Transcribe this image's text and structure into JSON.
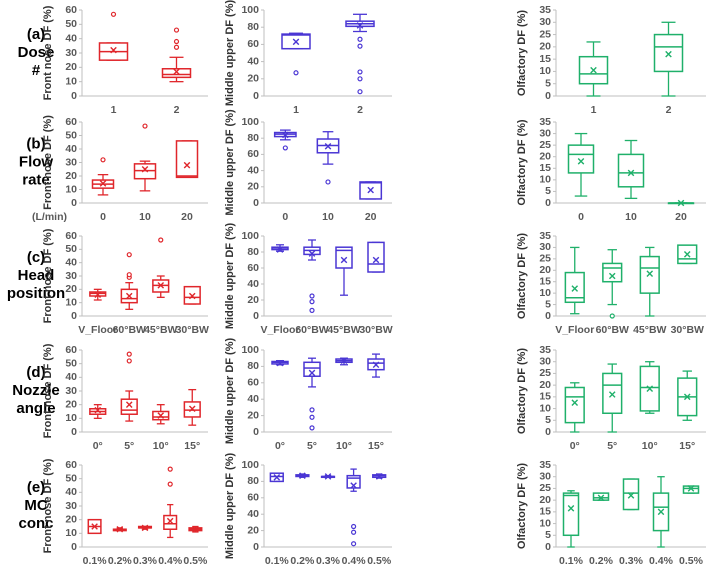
{
  "row_labels": [
    [
      "(a)",
      "Dose",
      "#"
    ],
    [
      "(b)",
      "Flow",
      "rate"
    ],
    [
      "(c)",
      "Head",
      "position"
    ],
    [
      "(d)",
      "Nozzle",
      "angle"
    ],
    [
      "(e)",
      "MC",
      "conc"
    ]
  ],
  "chart_data": [
    {
      "type": "box",
      "ylabel": "Front nose DF (%)",
      "color": "#e0262b",
      "ylim": [
        0,
        60
      ],
      "yticks": [
        0,
        10,
        20,
        30,
        40,
        50,
        60
      ],
      "categories": [
        "1",
        "2"
      ],
      "boxes": [
        {
          "min": 25,
          "q1": 25,
          "median": 31,
          "q3": 37,
          "max": 37,
          "mean": 32,
          "outliers": [
            57
          ]
        },
        {
          "min": 10,
          "q1": 13,
          "median": 15,
          "q3": 19,
          "max": 27,
          "mean": 17,
          "outliers": [
            34,
            38,
            46
          ]
        }
      ]
    },
    {
      "type": "box",
      "ylabel": "Middle upper DF (%)",
      "color": "#4a36d4",
      "ylim": [
        0,
        100
      ],
      "yticks": [
        0,
        20,
        40,
        60,
        80,
        100
      ],
      "categories": [
        "1",
        "2"
      ],
      "boxes": [
        {
          "min": 55,
          "q1": 55,
          "median": 71,
          "q3": 72,
          "max": 73,
          "mean": 63,
          "outliers": [
            27
          ]
        },
        {
          "min": 75,
          "q1": 81,
          "median": 84,
          "q3": 87,
          "max": 95,
          "mean": 82,
          "outliers": [
            66,
            58,
            28,
            20,
            5
          ]
        }
      ]
    },
    {
      "type": "box",
      "ylabel": "Olfactory DF (%)",
      "color": "#1fb06a",
      "ylim": [
        0,
        35
      ],
      "yticks": [
        0,
        5,
        10,
        15,
        20,
        25,
        30,
        35
      ],
      "categories": [
        "1",
        "2"
      ],
      "boxes": [
        {
          "min": 0,
          "q1": 5,
          "median": 9,
          "q3": 16,
          "max": 22,
          "mean": 10.5,
          "outliers": []
        },
        {
          "min": 0,
          "q1": 10,
          "median": 20,
          "q3": 25,
          "max": 30,
          "mean": 17,
          "outliers": []
        }
      ]
    },
    {
      "type": "box",
      "ylabel": "Front nose DF (%)",
      "xlabel": "(L/min)",
      "color": "#e0262b",
      "ylim": [
        0,
        60
      ],
      "yticks": [
        0,
        10,
        20,
        30,
        40,
        50,
        60
      ],
      "categories": [
        "0",
        "10",
        "20"
      ],
      "boxes": [
        {
          "min": 6,
          "q1": 11,
          "median": 14,
          "q3": 17,
          "max": 21,
          "mean": 14.5,
          "outliers": [
            32
          ]
        },
        {
          "min": 9,
          "q1": 18,
          "median": 24,
          "q3": 29,
          "max": 31,
          "mean": 25,
          "outliers": [
            57
          ]
        },
        {
          "min": 19,
          "q1": 19,
          "median": 20,
          "q3": 46,
          "max": 46,
          "mean": 28,
          "outliers": []
        }
      ]
    },
    {
      "type": "box",
      "ylabel": "Middle upper DF (%)",
      "color": "#4a36d4",
      "ylim": [
        0,
        100
      ],
      "yticks": [
        0,
        20,
        40,
        60,
        80,
        100
      ],
      "categories": [
        "0",
        "10",
        "20"
      ],
      "boxes": [
        {
          "min": 78,
          "q1": 82,
          "median": 85,
          "q3": 87,
          "max": 90,
          "mean": 84,
          "outliers": [
            68
          ]
        },
        {
          "min": 48,
          "q1": 62,
          "median": 71,
          "q3": 79,
          "max": 88,
          "mean": 70,
          "outliers": [
            26
          ]
        },
        {
          "min": 5,
          "q1": 5,
          "median": 25,
          "q3": 26,
          "max": 26,
          "mean": 16,
          "outliers": []
        }
      ]
    },
    {
      "type": "box",
      "ylabel": "Olfactory DF (%)",
      "color": "#1fb06a",
      "ylim": [
        0,
        35
      ],
      "yticks": [
        0,
        5,
        10,
        15,
        20,
        25,
        30,
        35
      ],
      "categories": [
        "0",
        "10",
        "20"
      ],
      "boxes": [
        {
          "min": 3,
          "q1": 13,
          "median": 21,
          "q3": 25,
          "max": 30,
          "mean": 18,
          "outliers": []
        },
        {
          "min": 2,
          "q1": 7,
          "median": 13,
          "q3": 21,
          "max": 27,
          "mean": 13,
          "outliers": []
        },
        {
          "min": 0,
          "q1": 0,
          "median": 0,
          "q3": 0,
          "max": 0,
          "mean": 0,
          "outliers": []
        }
      ]
    },
    {
      "type": "box",
      "ylabel": "Front nose DF (%)",
      "color": "#e0262b",
      "ylim": [
        0,
        60
      ],
      "yticks": [
        0,
        10,
        20,
        30,
        40,
        50,
        60
      ],
      "categories": [
        "V_Floor",
        "60°BW",
        "45°BW",
        "30°BW"
      ],
      "boxes": [
        {
          "min": 12,
          "q1": 15,
          "median": 17,
          "q3": 18,
          "max": 20,
          "mean": 16,
          "outliers": []
        },
        {
          "min": 5,
          "q1": 10,
          "median": 13,
          "q3": 20,
          "max": 25,
          "mean": 15,
          "outliers": [
            29,
            31,
            46
          ]
        },
        {
          "min": 14,
          "q1": 18,
          "median": 23,
          "q3": 27,
          "max": 30,
          "mean": 23,
          "outliers": [
            57
          ]
        },
        {
          "min": 9,
          "q1": 9,
          "median": 14,
          "q3": 22,
          "max": 22,
          "mean": 15,
          "outliers": []
        }
      ]
    },
    {
      "type": "box",
      "ylabel": "Middle upper DF (%)",
      "color": "#4a36d4",
      "ylim": [
        0,
        100
      ],
      "yticks": [
        0,
        20,
        40,
        60,
        80,
        100
      ],
      "categories": [
        "V_Floor",
        "60°BW",
        "45°BW",
        "30°BW"
      ],
      "boxes": [
        {
          "min": 81,
          "q1": 83,
          "median": 85,
          "q3": 86,
          "max": 89,
          "mean": 83,
          "outliers": []
        },
        {
          "min": 70,
          "q1": 77,
          "median": 82,
          "q3": 86,
          "max": 95,
          "mean": 78,
          "outliers": [
            25,
            18,
            7
          ]
        },
        {
          "min": 26,
          "q1": 60,
          "median": 82,
          "q3": 86,
          "max": 86,
          "mean": 70,
          "outliers": []
        },
        {
          "min": 55,
          "q1": 55,
          "median": 65,
          "q3": 92,
          "max": 92,
          "mean": 70,
          "outliers": []
        }
      ]
    },
    {
      "type": "box",
      "ylabel": "Olfactory DF (%)",
      "color": "#1fb06a",
      "ylim": [
        0,
        35
      ],
      "yticks": [
        0,
        5,
        10,
        15,
        20,
        25,
        30,
        35
      ],
      "categories": [
        "V_Floor",
        "60°BW",
        "45°BW",
        "30°BW"
      ],
      "boxes": [
        {
          "min": 1,
          "q1": 6,
          "median": 8,
          "q3": 19,
          "max": 30,
          "mean": 12,
          "outliers": []
        },
        {
          "min": 5,
          "q1": 15,
          "median": 21,
          "q3": 23,
          "max": 29,
          "mean": 17.5,
          "outliers": [
            0
          ]
        },
        {
          "min": 0,
          "q1": 10,
          "median": 21,
          "q3": 26,
          "max": 30,
          "mean": 18.5,
          "outliers": []
        },
        {
          "min": 23,
          "q1": 23,
          "median": 25,
          "q3": 31,
          "max": 31,
          "mean": 27,
          "outliers": []
        }
      ]
    },
    {
      "type": "box",
      "ylabel": "Front nose DF (%)",
      "color": "#e0262b",
      "ylim": [
        0,
        60
      ],
      "yticks": [
        0,
        10,
        20,
        30,
        40,
        50,
        60
      ],
      "categories": [
        "0°",
        "5°",
        "10°",
        "15°"
      ],
      "boxes": [
        {
          "min": 10,
          "q1": 13,
          "median": 15,
          "q3": 17,
          "max": 20,
          "mean": 16,
          "outliers": []
        },
        {
          "min": 8,
          "q1": 13,
          "median": 16,
          "q3": 24,
          "max": 30,
          "mean": 20,
          "outliers": [
            52,
            57
          ]
        },
        {
          "min": 6,
          "q1": 9,
          "median": 11,
          "q3": 15,
          "max": 20,
          "mean": 12,
          "outliers": []
        },
        {
          "min": 5,
          "q1": 11,
          "median": 16,
          "q3": 22,
          "max": 31,
          "mean": 17,
          "outliers": []
        }
      ]
    },
    {
      "type": "box",
      "ylabel": "Middle upper DF (%)",
      "color": "#4a36d4",
      "ylim": [
        0,
        100
      ],
      "yticks": [
        0,
        20,
        40,
        60,
        80,
        100
      ],
      "categories": [
        "0°",
        "5°",
        "10°",
        "15°"
      ],
      "boxes": [
        {
          "min": 82,
          "q1": 83,
          "median": 85,
          "q3": 86,
          "max": 87,
          "mean": 84,
          "outliers": []
        },
        {
          "min": 55,
          "q1": 68,
          "median": 78,
          "q3": 85,
          "max": 90,
          "mean": 72,
          "outliers": [
            27,
            18,
            5
          ]
        },
        {
          "min": 82,
          "q1": 85,
          "median": 87,
          "q3": 89,
          "max": 90,
          "mean": 87,
          "outliers": []
        },
        {
          "min": 67,
          "q1": 76,
          "median": 84,
          "q3": 89,
          "max": 95,
          "mean": 82,
          "outliers": []
        }
      ]
    },
    {
      "type": "box",
      "ylabel": "Olfactory DF (%)",
      "color": "#1fb06a",
      "ylim": [
        0,
        35
      ],
      "yticks": [
        0,
        5,
        10,
        15,
        20,
        25,
        30,
        35
      ],
      "categories": [
        "0°",
        "5°",
        "10°",
        "15°"
      ],
      "boxes": [
        {
          "min": 0,
          "q1": 4,
          "median": 15,
          "q3": 19,
          "max": 21,
          "mean": 12.5,
          "outliers": []
        },
        {
          "min": 0,
          "q1": 8,
          "median": 20,
          "q3": 25,
          "max": 29,
          "mean": 16,
          "outliers": []
        },
        {
          "min": 8,
          "q1": 9,
          "median": 19,
          "q3": 28,
          "max": 30,
          "mean": 18.5,
          "outliers": []
        },
        {
          "min": 5,
          "q1": 7,
          "median": 15,
          "q3": 23,
          "max": 26,
          "mean": 15,
          "outliers": []
        }
      ]
    },
    {
      "type": "box",
      "ylabel": "Front nose DF (%)",
      "color": "#e0262b",
      "ylim": [
        0,
        60
      ],
      "yticks": [
        0,
        10,
        20,
        30,
        40,
        50,
        60
      ],
      "categories": [
        "0.1%",
        "0.2%",
        "0.3%",
        "0.4%",
        "0.5%"
      ],
      "boxes": [
        {
          "min": 10,
          "q1": 10,
          "median": 15,
          "q3": 20,
          "max": 20,
          "mean": 15,
          "outliers": []
        },
        {
          "min": 12,
          "q1": 12,
          "median": 13,
          "q3": 13,
          "max": 14,
          "mean": 13,
          "outliers": []
        },
        {
          "min": 13,
          "q1": 14,
          "median": 14,
          "q3": 15,
          "max": 15,
          "mean": 14,
          "outliers": []
        },
        {
          "min": 7,
          "q1": 13,
          "median": 17,
          "q3": 23,
          "max": 31,
          "mean": 19,
          "outliers": [
            46,
            57
          ]
        },
        {
          "min": 11,
          "q1": 12,
          "median": 13,
          "q3": 14,
          "max": 15,
          "mean": 13,
          "outliers": []
        }
      ]
    },
    {
      "type": "box",
      "ylabel": "Middle upper DF (%)",
      "color": "#4a36d4",
      "ylim": [
        0,
        100
      ],
      "yticks": [
        0,
        20,
        40,
        60,
        80,
        100
      ],
      "categories": [
        "0.1%",
        "0.2%",
        "0.3%",
        "0.4%",
        "0.5%"
      ],
      "boxes": [
        {
          "min": 80,
          "q1": 80,
          "median": 86,
          "q3": 90,
          "max": 90,
          "mean": 85,
          "outliers": []
        },
        {
          "min": 85,
          "q1": 86,
          "median": 87,
          "q3": 88,
          "max": 89,
          "mean": 87,
          "outliers": []
        },
        {
          "min": 85,
          "q1": 85,
          "median": 86,
          "q3": 86,
          "max": 87,
          "mean": 86,
          "outliers": []
        },
        {
          "min": 68,
          "q1": 72,
          "median": 84,
          "q3": 87,
          "max": 95,
          "mean": 75,
          "outliers": [
            25,
            18,
            4
          ]
        },
        {
          "min": 84,
          "q1": 85,
          "median": 87,
          "q3": 88,
          "max": 89,
          "mean": 86,
          "outliers": []
        }
      ]
    },
    {
      "type": "box",
      "ylabel": "Olfactory DF (%)",
      "color": "#1fb06a",
      "ylim": [
        0,
        35
      ],
      "yticks": [
        0,
        5,
        10,
        15,
        20,
        25,
        30,
        35
      ],
      "categories": [
        "0.1%",
        "0.2%",
        "0.3%",
        "0.4%",
        "0.5%"
      ],
      "boxes": [
        {
          "min": 0,
          "q1": 5,
          "median": 22,
          "q3": 23,
          "max": 24,
          "mean": 16.5,
          "outliers": []
        },
        {
          "min": 20,
          "q1": 20,
          "median": 21,
          "q3": 23,
          "max": 23,
          "mean": 21,
          "outliers": []
        },
        {
          "min": 16,
          "q1": 16,
          "median": 23,
          "q3": 29,
          "max": 29,
          "mean": 22,
          "outliers": []
        },
        {
          "min": 0,
          "q1": 7,
          "median": 17,
          "q3": 23,
          "max": 30,
          "mean": 15,
          "outliers": []
        },
        {
          "min": 23,
          "q1": 23,
          "median": 25,
          "q3": 26,
          "max": 26,
          "mean": 25,
          "outliers": []
        }
      ]
    }
  ]
}
